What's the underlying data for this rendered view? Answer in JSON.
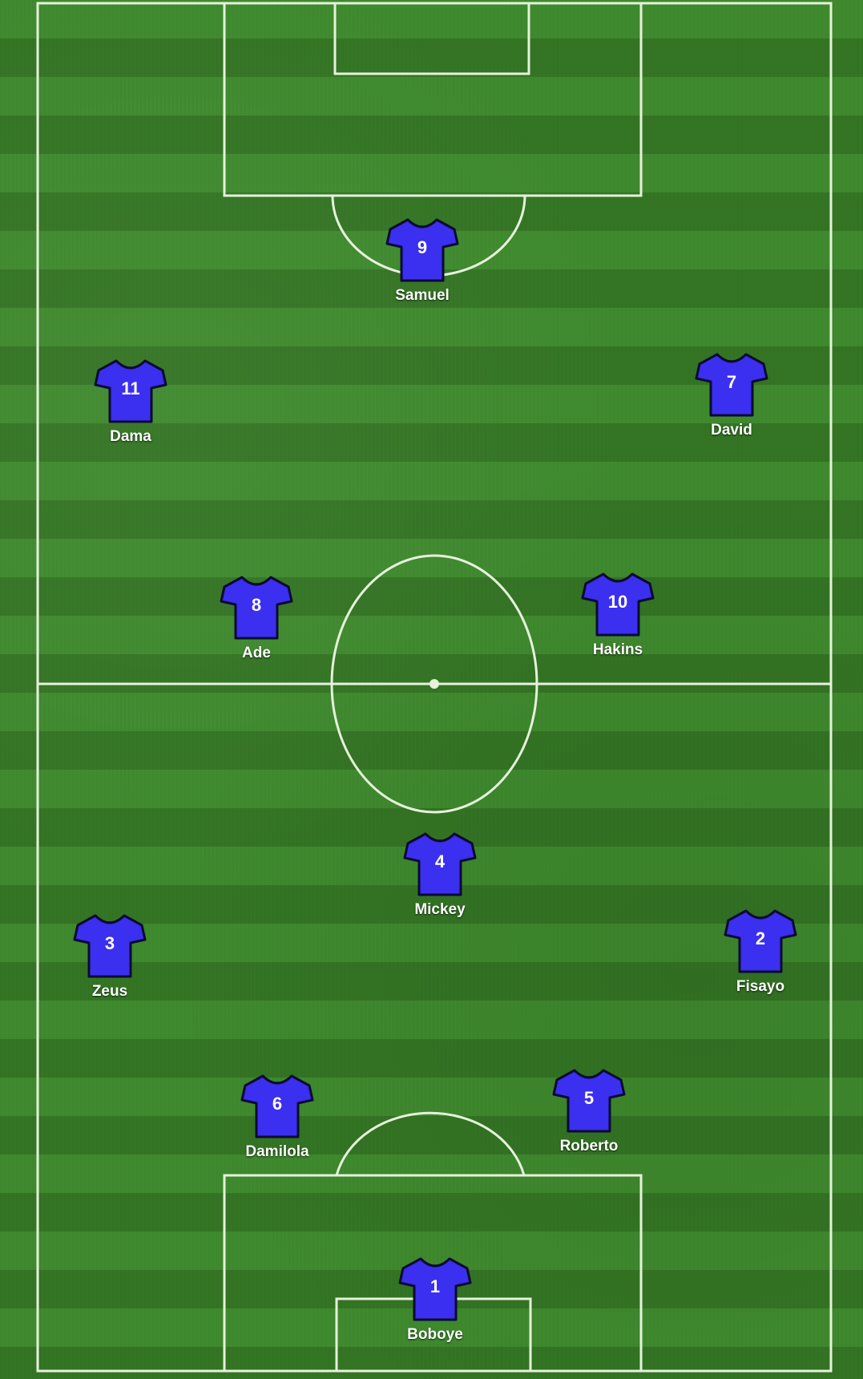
{
  "colors": {
    "shirt": "#3b2ff0",
    "shirt_outline": "#0b0b30",
    "pitch_light": "#3f8a2e",
    "pitch_dark": "#347524",
    "line": "#e6f2dc"
  },
  "players": [
    {
      "number": "9",
      "name": "Samuel"
    },
    {
      "number": "11",
      "name": "Dama"
    },
    {
      "number": "7",
      "name": "David"
    },
    {
      "number": "8",
      "name": "Ade"
    },
    {
      "number": "10",
      "name": "Hakins"
    },
    {
      "number": "4",
      "name": "Mickey"
    },
    {
      "number": "3",
      "name": "Zeus"
    },
    {
      "number": "2",
      "name": "Fisayo"
    },
    {
      "number": "6",
      "name": "Damilola"
    },
    {
      "number": "5",
      "name": "Roberto"
    },
    {
      "number": "1",
      "name": "Boboye"
    }
  ]
}
